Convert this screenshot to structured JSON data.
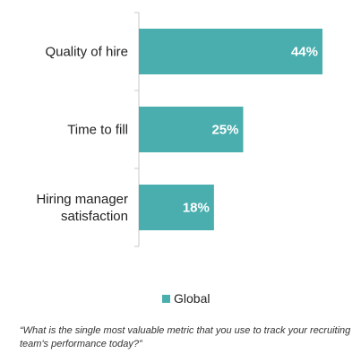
{
  "chart_data": {
    "type": "bar",
    "orientation": "horizontal",
    "categories": [
      [
        "Quality of hire"
      ],
      [
        "Time to fill"
      ],
      [
        "Hiring manager",
        "satisfaction"
      ]
    ],
    "series": [
      {
        "name": "Global",
        "values": [
          44,
          25,
          18
        ],
        "labels": [
          "44%",
          "25%",
          "18%"
        ],
        "color": "#4aaeae"
      }
    ],
    "xlim": [
      0,
      44
    ],
    "grid": false,
    "legend_position": "bottom"
  },
  "question": "“What is the single most valuable metric that you use to track your recruiting team's performance today?”",
  "colors": {
    "bar": "#4aaeae",
    "axis": "#c8c8c8"
  }
}
